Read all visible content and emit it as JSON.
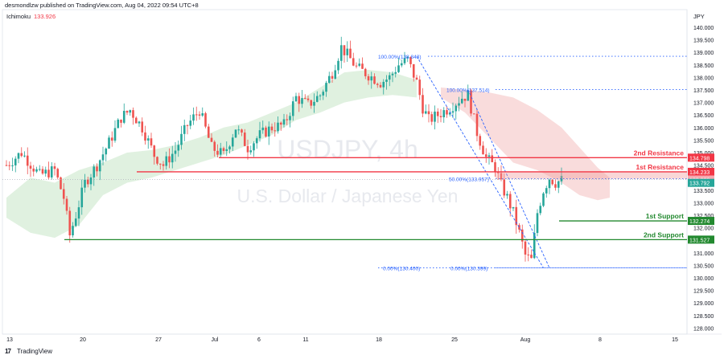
{
  "header": {
    "text": "desmondlzw published on TradingView.com, Aug 04, 2022 09:54 UTC+8"
  },
  "indicator": {
    "name": "Ichimoku",
    "value": "133.926"
  },
  "currency": "JPY",
  "brand": {
    "logo": "17",
    "name": "TradingView"
  },
  "watermark": {
    "symbol": "USDJPY, 4h",
    "name": "U.S. Dollar / Japanese Yen"
  },
  "colors": {
    "up": "#26a69a",
    "down": "#ef5350",
    "resistance": "#f23645",
    "support": "#22892f",
    "fib": "#2962ff",
    "kumo_green": "#a5d6a7",
    "kumo_red": "#ef9a9a",
    "crosshair": "#b0b3bd"
  },
  "chart_data": {
    "type": "candlestick",
    "symbol": "USDJPY",
    "timeframe": "4h",
    "ylim": [
      127.8,
      140.4
    ],
    "y_ticks": [
      "128.000",
      "128.500",
      "129.000",
      "129.500",
      "130.000",
      "130.500",
      "131.000",
      "131.500",
      "132.000",
      "132.500",
      "133.000",
      "133.500",
      "134.000",
      "134.500",
      "135.000",
      "135.500",
      "136.000",
      "136.500",
      "137.000",
      "137.500",
      "138.000",
      "138.500",
      "139.000",
      "139.500",
      "140.000"
    ],
    "x_ticks": [
      "13",
      "20",
      "27",
      "Jul",
      "6",
      "11",
      "18",
      "25",
      "Aug",
      "8",
      "15"
    ],
    "price_path": [
      {
        "i": 0,
        "p": 134.5
      },
      {
        "i": 5,
        "p": 135.0
      },
      {
        "i": 11,
        "p": 134.1
      },
      {
        "i": 16,
        "p": 134.3
      },
      {
        "i": 19,
        "p": 133.2
      },
      {
        "i": 21,
        "p": 131.7
      },
      {
        "i": 23,
        "p": 132.5
      },
      {
        "i": 26,
        "p": 133.8
      },
      {
        "i": 30,
        "p": 134.5
      },
      {
        "i": 34,
        "p": 135.4
      },
      {
        "i": 38,
        "p": 136.4
      },
      {
        "i": 41,
        "p": 136.7
      },
      {
        "i": 45,
        "p": 136.0
      },
      {
        "i": 49,
        "p": 134.9
      },
      {
        "i": 52,
        "p": 134.5
      },
      {
        "i": 56,
        "p": 135.1
      },
      {
        "i": 60,
        "p": 136.1
      },
      {
        "i": 64,
        "p": 136.7
      },
      {
        "i": 68,
        "p": 135.2
      },
      {
        "i": 72,
        "p": 134.9
      },
      {
        "i": 76,
        "p": 136.0
      },
      {
        "i": 80,
        "p": 135.2
      },
      {
        "i": 84,
        "p": 135.7
      },
      {
        "i": 88,
        "p": 136.0
      },
      {
        "i": 92,
        "p": 136.1
      },
      {
        "i": 96,
        "p": 137.2
      },
      {
        "i": 100,
        "p": 136.9
      },
      {
        "i": 104,
        "p": 137.3
      },
      {
        "i": 108,
        "p": 138.2
      },
      {
        "i": 111,
        "p": 139.2
      },
      {
        "i": 113,
        "p": 138.9
      },
      {
        "i": 116,
        "p": 138.4
      },
      {
        "i": 120,
        "p": 138.1
      },
      {
        "i": 124,
        "p": 137.8
      },
      {
        "i": 127,
        "p": 138.0
      },
      {
        "i": 130,
        "p": 138.5
      },
      {
        "i": 133,
        "p": 138.7
      },
      {
        "i": 136,
        "p": 137.8
      },
      {
        "i": 138,
        "p": 136.8
      },
      {
        "i": 140,
        "p": 136.3
      },
      {
        "i": 143,
        "p": 136.5
      },
      {
        "i": 147,
        "p": 136.8
      },
      {
        "i": 151,
        "p": 137.2
      },
      {
        "i": 153,
        "p": 137.3
      },
      {
        "i": 156,
        "p": 135.8
      },
      {
        "i": 159,
        "p": 134.8
      },
      {
        "i": 162,
        "p": 134.4
      },
      {
        "i": 164,
        "p": 133.7
      },
      {
        "i": 166,
        "p": 133.2
      },
      {
        "i": 168,
        "p": 132.6
      },
      {
        "i": 170,
        "p": 131.8
      },
      {
        "i": 172,
        "p": 130.9
      },
      {
        "i": 174,
        "p": 130.7
      },
      {
        "i": 176,
        "p": 132.6
      },
      {
        "i": 178,
        "p": 133.5
      },
      {
        "i": 180,
        "p": 134.0
      },
      {
        "i": 182,
        "p": 133.8
      },
      {
        "i": 184,
        "p": 133.9
      }
    ],
    "levels": [
      {
        "label": "2nd Resistance",
        "value": 134.798,
        "tag": "134.798",
        "kind": "resistance"
      },
      {
        "label": "1st Resistance",
        "value": 134.233,
        "tag": "134.233",
        "kind": "resistance"
      },
      {
        "label": "1st Support",
        "value": 132.274,
        "tag": "132.274",
        "kind": "support"
      },
      {
        "label": "2nd Support",
        "value": 131.527,
        "tag": "131.527",
        "kind": "support"
      }
    ],
    "price_tags": [
      {
        "value": 133.926,
        "tag": "133.926",
        "kind": "last"
      },
      {
        "value": 133.792,
        "tag": "133.792",
        "kind": "current"
      }
    ],
    "fib_retracements": [
      {
        "label": "100.00%(138.843)",
        "value": 138.843
      },
      {
        "label": "100.00%(137.514)",
        "value": 137.514
      },
      {
        "label": "50.00%(133.957)",
        "value": 133.957
      },
      {
        "label": "0.00%(130.400)",
        "value": 130.4
      },
      {
        "label": "0.00%(130.399)",
        "value": 130.399
      }
    ]
  }
}
